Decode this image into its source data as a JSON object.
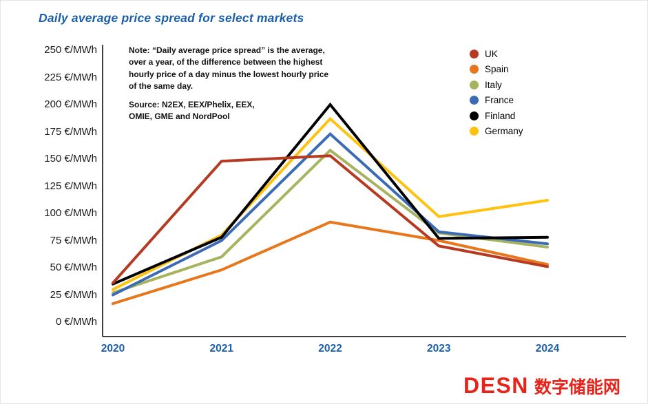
{
  "chart_data": {
    "type": "line",
    "title": "Daily average price spread for select markets",
    "title_color": "#1B5FAA",
    "note": "Note: “Daily average price spread” is the average, over a year, of the difference between the highest hourly price of a day minus the lowest hourly price of the same day.",
    "source": "Source: N2EX, EEX/Phelix, EEX,\nOMIE, GME and NordPool",
    "x": [
      "2020",
      "2021",
      "2022",
      "2023",
      "2024"
    ],
    "x_tick_color": "#1B5FAA",
    "y_tick_color": "#1a1a1a",
    "yticks": [
      0,
      25,
      50,
      75,
      100,
      125,
      150,
      175,
      200,
      225,
      250
    ],
    "ytick_suffix": " €/MWh",
    "ylim": [
      0,
      250
    ],
    "xlabel": "",
    "ylabel": "",
    "grid": false,
    "legend_position": "top-right",
    "series": [
      {
        "name": "UK",
        "color": "#B63A21",
        "values": [
          36,
          148,
          153,
          70,
          51
        ]
      },
      {
        "name": "Spain",
        "color": "#E8761B",
        "values": [
          17,
          48,
          92,
          75,
          53
        ]
      },
      {
        "name": "Italy",
        "color": "#A7B35F",
        "values": [
          27,
          60,
          158,
          82,
          69
        ]
      },
      {
        "name": "France",
        "color": "#3A6BB4",
        "values": [
          25,
          75,
          173,
          83,
          72
        ]
      },
      {
        "name": "Finland",
        "color": "#000000",
        "values": [
          35,
          78,
          200,
          77,
          78
        ]
      },
      {
        "name": "Germany",
        "color": "#FFC20E",
        "values": [
          30,
          80,
          187,
          97,
          112
        ]
      }
    ],
    "draw_order": [
      "Spain",
      "Italy",
      "France",
      "Germany",
      "Finland",
      "UK"
    ]
  },
  "footer": {
    "logo_latin": "DESN",
    "logo_chinese": "数字储能网",
    "logo_color": "#E8231A"
  }
}
